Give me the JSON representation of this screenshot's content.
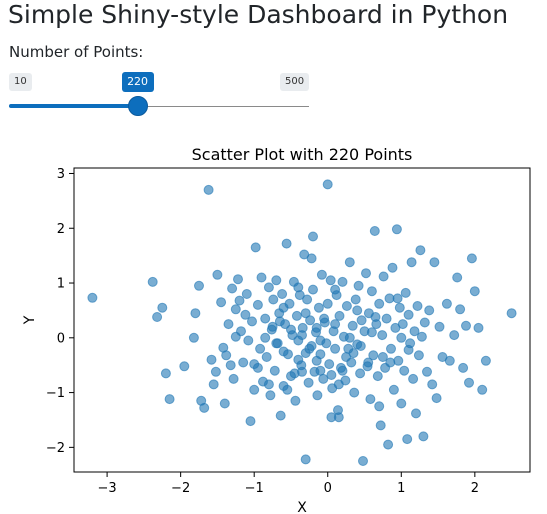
{
  "page": {
    "title": "Simple Shiny-style Dashboard in Python"
  },
  "slider": {
    "label": "Number of Points:",
    "min_label": "10",
    "max_label": "500",
    "min": 10,
    "max": 500,
    "value": 220,
    "value_label": "220",
    "accent_color": "#0d6ebd"
  },
  "chart_data": {
    "type": "scatter",
    "title": "Scatter Plot with 220 Points",
    "xlabel": "X",
    "ylabel": "Y",
    "xlim": [
      -3.45,
      2.75
    ],
    "ylim": [
      -2.45,
      3.1
    ],
    "xticks": [
      -3,
      -2,
      -1,
      0,
      1,
      2
    ],
    "yticks": [
      -2,
      -1,
      0,
      1,
      2,
      3
    ],
    "xtick_labels": [
      "−3",
      "−2",
      "−1",
      "0",
      "1",
      "2"
    ],
    "ytick_labels": [
      "−2",
      "−1",
      "0",
      "1",
      "2",
      "3"
    ],
    "grid": false,
    "marker_color": "#1f77b4",
    "marker_alpha": 0.6,
    "points": [
      [
        -3.2,
        0.73
      ],
      [
        -2.38,
        1.02
      ],
      [
        -2.32,
        0.38
      ],
      [
        -2.25,
        0.55
      ],
      [
        -2.2,
        -0.65
      ],
      [
        -2.15,
        -1.12
      ],
      [
        -1.95,
        -0.52
      ],
      [
        -1.82,
        0.0
      ],
      [
        -1.8,
        0.45
      ],
      [
        -1.75,
        0.95
      ],
      [
        -1.72,
        -1.15
      ],
      [
        -1.68,
        -1.28
      ],
      [
        -1.62,
        2.7
      ],
      [
        -1.58,
        -0.4
      ],
      [
        -1.55,
        -0.85
      ],
      [
        -1.52,
        -0.62
      ],
      [
        -1.5,
        1.15
      ],
      [
        -1.45,
        0.65
      ],
      [
        -1.42,
        -0.18
      ],
      [
        -1.4,
        -1.2
      ],
      [
        -1.38,
        -0.32
      ],
      [
        -1.35,
        0.25
      ],
      [
        -1.32,
        -0.5
      ],
      [
        -1.3,
        0.9
      ],
      [
        -1.28,
        -0.75
      ],
      [
        -1.25,
        0.52
      ],
      [
        -1.22,
        1.07
      ],
      [
        -1.2,
        0.68
      ],
      [
        -1.18,
        0.12
      ],
      [
        -1.15,
        -0.45
      ],
      [
        -1.12,
        0.42
      ],
      [
        -1.1,
        0.8
      ],
      [
        -1.08,
        -0.05
      ],
      [
        -1.05,
        -1.52
      ],
      [
        -1.03,
        0.3
      ],
      [
        -1.0,
        -0.95
      ],
      [
        -0.98,
        1.65
      ],
      [
        -0.95,
        0.6
      ],
      [
        -0.92,
        -0.2
      ],
      [
        -0.9,
        1.1
      ],
      [
        -0.88,
        -0.8
      ],
      [
        -0.85,
        0.35
      ],
      [
        -0.83,
        -0.35
      ],
      [
        -0.8,
        0.92
      ],
      [
        -0.78,
        -1.05
      ],
      [
        -0.76,
        0.15
      ],
      [
        -0.74,
        0.7
      ],
      [
        -0.72,
        -0.6
      ],
      [
        -0.7,
        1.05
      ],
      [
        -0.68,
        -0.1
      ],
      [
        -0.66,
        0.45
      ],
      [
        -0.64,
        -1.42
      ],
      [
        -0.62,
        0.8
      ],
      [
        -0.6,
        -0.88
      ],
      [
        -0.58,
        0.25
      ],
      [
        -0.56,
        1.72
      ],
      [
        -0.54,
        -0.3
      ],
      [
        -0.52,
        0.62
      ],
      [
        -0.5,
        -0.7
      ],
      [
        -0.48,
        0.05
      ],
      [
        -0.46,
        1.02
      ],
      [
        -0.44,
        -1.15
      ],
      [
        -0.42,
        0.4
      ],
      [
        -0.4,
        -0.05
      ],
      [
        -0.38,
        0.78
      ],
      [
        -0.36,
        -0.5
      ],
      [
        -0.34,
        0.18
      ],
      [
        -0.32,
        1.52
      ],
      [
        -0.3,
        -0.28
      ],
      [
        -0.28,
        0.7
      ],
      [
        -0.26,
        -0.82
      ],
      [
        -0.24,
        0.32
      ],
      [
        -0.22,
        -0.15
      ],
      [
        -0.2,
        0.88
      ],
      [
        -0.18,
        -0.62
      ],
      [
        -0.16,
        0.1
      ],
      [
        -0.14,
        -1.05
      ],
      [
        -0.12,
        0.55
      ],
      [
        -0.1,
        -0.3
      ],
      [
        -0.08,
        1.15
      ],
      [
        -0.06,
        -0.75
      ],
      [
        -0.04,
        0.28
      ],
      [
        -0.02,
        -0.1
      ],
      [
        0.0,
        0.62
      ],
      [
        0.02,
        -0.48
      ],
      [
        0.04,
        1.05
      ],
      [
        0.06,
        -0.92
      ],
      [
        0.08,
        0.12
      ],
      [
        0.1,
        -0.2
      ],
      [
        0.12,
        0.78
      ],
      [
        0.14,
        -1.32
      ],
      [
        0.16,
        0.4
      ],
      [
        0.18,
        -0.55
      ],
      [
        0.2,
        1.02
      ],
      [
        0.22,
        0.02
      ],
      [
        0.24,
        -0.78
      ],
      [
        0.26,
        0.58
      ],
      [
        0.28,
        -0.2
      ],
      [
        0.3,
        1.38
      ],
      [
        0.32,
        -0.45
      ],
      [
        0.34,
        0.22
      ],
      [
        0.36,
        -1.0
      ],
      [
        0.38,
        0.7
      ],
      [
        0.4,
        -0.12
      ],
      [
        0.42,
        0.95
      ],
      [
        0.44,
        -0.65
      ],
      [
        0.46,
        0.32
      ],
      [
        0.48,
        -2.25
      ],
      [
        0.5,
        0.12
      ],
      [
        0.52,
        1.18
      ],
      [
        0.54,
        -0.52
      ],
      [
        0.56,
        0.45
      ],
      [
        0.58,
        -1.12
      ],
      [
        0.6,
        0.85
      ],
      [
        0.62,
        -0.32
      ],
      [
        0.64,
        1.95
      ],
      [
        0.66,
        0.25
      ],
      [
        0.68,
        -0.7
      ],
      [
        0.7,
        0.62
      ],
      [
        0.72,
        -1.6
      ],
      [
        0.74,
        0.05
      ],
      [
        0.76,
        1.12
      ],
      [
        0.78,
        -0.55
      ],
      [
        0.8,
        0.35
      ],
      [
        0.82,
        -1.95
      ],
      [
        0.84,
        0.72
      ],
      [
        0.86,
        -0.2
      ],
      [
        0.88,
        1.28
      ],
      [
        0.9,
        -0.95
      ],
      [
        0.92,
        0.18
      ],
      [
        0.94,
        1.98
      ],
      [
        0.96,
        -0.42
      ],
      [
        0.98,
        0.55
      ],
      [
        1.0,
        -1.2
      ],
      [
        1.02,
        0.25
      ],
      [
        1.04,
        -0.6
      ],
      [
        1.06,
        0.82
      ],
      [
        1.08,
        -1.85
      ],
      [
        1.1,
        0.42
      ],
      [
        1.12,
        -0.1
      ],
      [
        1.14,
        1.38
      ],
      [
        1.16,
        -0.75
      ],
      [
        1.18,
        0.12
      ],
      [
        1.2,
        -1.38
      ],
      [
        1.22,
        0.58
      ],
      [
        1.24,
        -0.32
      ],
      [
        1.26,
        1.6
      ],
      [
        1.28,
        0.02
      ],
      [
        1.3,
        -1.8
      ],
      [
        1.32,
        0.28
      ],
      [
        1.35,
        -0.62
      ],
      [
        1.38,
        0.5
      ],
      [
        1.42,
        -0.85
      ],
      [
        1.45,
        1.38
      ],
      [
        1.48,
        -1.1
      ],
      [
        1.52,
        0.2
      ],
      [
        1.56,
        -0.35
      ],
      [
        1.62,
        0.62
      ],
      [
        1.66,
        -0.42
      ],
      [
        1.72,
        0.05
      ],
      [
        1.76,
        1.1
      ],
      [
        1.8,
        0.52
      ],
      [
        1.84,
        -0.55
      ],
      [
        1.88,
        0.22
      ],
      [
        1.92,
        -0.82
      ],
      [
        1.96,
        1.45
      ],
      [
        2.0,
        0.85
      ],
      [
        2.05,
        0.18
      ],
      [
        2.1,
        -0.95
      ],
      [
        2.15,
        -0.42
      ],
      [
        2.5,
        0.45
      ],
      [
        -0.2,
        1.85
      ],
      [
        0.0,
        2.8
      ],
      [
        -0.95,
        -0.55
      ],
      [
        -0.6,
        -0.25
      ],
      [
        -0.35,
        -0.62
      ],
      [
        -0.15,
        -0.42
      ],
      [
        0.05,
        -0.68
      ],
      [
        0.15,
        -0.85
      ],
      [
        0.35,
        -0.28
      ],
      [
        -0.7,
        -0.1
      ],
      [
        -0.4,
        -0.4
      ],
      [
        -0.1,
        -0.05
      ],
      [
        0.2,
        -0.6
      ],
      [
        -0.5,
        0.15
      ],
      [
        -0.25,
        -0.2
      ],
      [
        0.1,
        0.25
      ],
      [
        -0.85,
        0.0
      ],
      [
        -0.65,
        0.3
      ],
      [
        -0.3,
        0.45
      ],
      [
        -0.05,
        0.35
      ],
      [
        0.25,
        -0.35
      ],
      [
        0.45,
        -0.15
      ],
      [
        0.65,
        0.38
      ],
      [
        0.85,
        -0.45
      ],
      [
        -0.15,
        0.18
      ],
      [
        -0.45,
        -0.65
      ],
      [
        0.55,
        -0.45
      ],
      [
        -1.25,
        0.02
      ],
      [
        1.0,
        0.0
      ],
      [
        0.75,
        -0.35
      ],
      [
        -0.55,
        -0.95
      ],
      [
        0.3,
        0.0
      ],
      [
        -0.1,
        -0.6
      ],
      [
        0.6,
        0.1
      ],
      [
        0.4,
        0.5
      ],
      [
        -0.75,
        0.2
      ],
      [
        -0.35,
        0.05
      ],
      [
        0.15,
        -1.45
      ],
      [
        0.05,
        -1.45
      ],
      [
        -0.3,
        -2.22
      ],
      [
        0.95,
        0.72
      ],
      [
        -0.22,
        1.45
      ],
      [
        -0.4,
        0.92
      ],
      [
        0.1,
        0.88
      ],
      [
        -0.8,
        -0.85
      ],
      [
        1.1,
        -0.22
      ],
      [
        -1.0,
        -0.48
      ],
      [
        0.7,
        -1.25
      ],
      [
        -0.6,
        0.55
      ]
    ]
  }
}
